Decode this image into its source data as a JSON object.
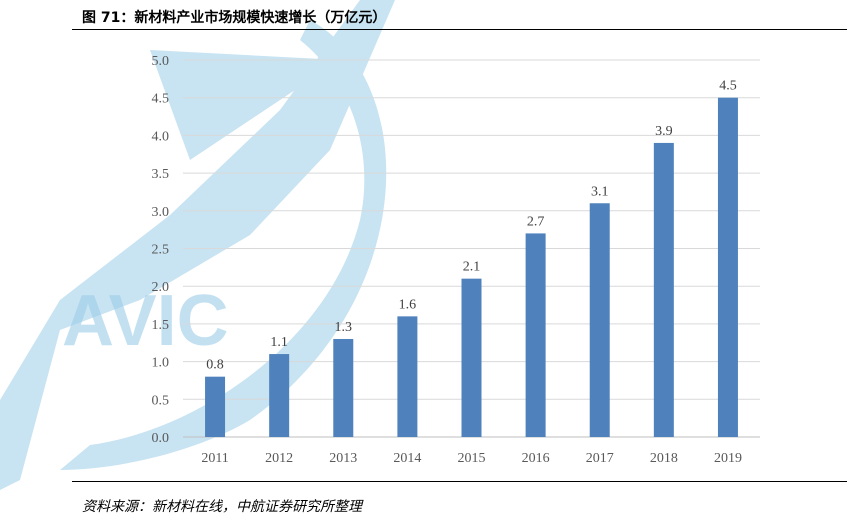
{
  "header": {
    "figure_title": "图 71：新材料产业市场规模快速增长（万亿元）"
  },
  "footer": {
    "source": "资料来源：新材料在线，中航证券研究所整理"
  },
  "watermark": {
    "text": "AVIC",
    "color": "#9ccde8"
  },
  "chart_data": {
    "type": "bar",
    "categories": [
      "2011",
      "2012",
      "2013",
      "2014",
      "2015",
      "2016",
      "2017",
      "2018",
      "2019"
    ],
    "values": [
      0.8,
      1.1,
      1.3,
      1.6,
      2.1,
      2.7,
      3.1,
      3.9,
      4.5
    ],
    "value_labels": [
      "0.8",
      "1.1",
      "1.3",
      "1.6",
      "2.1",
      "2.7",
      "3.1",
      "3.9",
      "4.5"
    ],
    "y_ticks": [
      "0.0",
      "0.5",
      "1.0",
      "1.5",
      "2.0",
      "2.5",
      "3.0",
      "3.5",
      "4.0",
      "4.5",
      "5.0"
    ],
    "ylim": [
      0,
      5
    ],
    "title": "",
    "xlabel": "",
    "ylabel": "",
    "grid": true,
    "bar_color": "#4f81bd",
    "grid_color": "#d9d9d9"
  }
}
